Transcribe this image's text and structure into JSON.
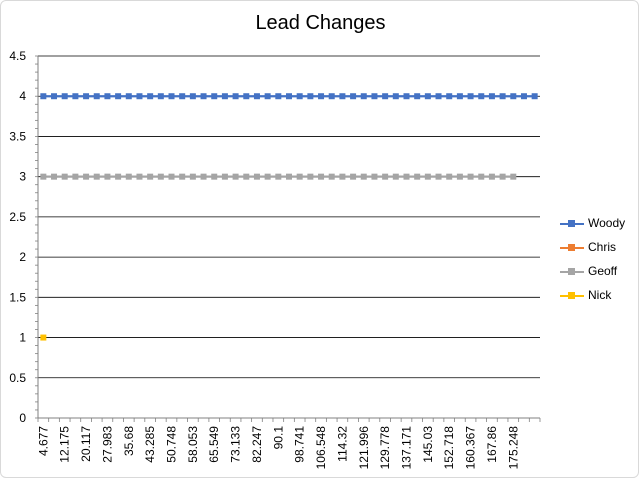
{
  "chart_data": {
    "type": "line",
    "title": "Lead Changes",
    "xlabel": "",
    "ylabel": "",
    "ylim": [
      0,
      4.5
    ],
    "y_ticks": [
      "0",
      "0.5",
      "1",
      "1.5",
      "2",
      "2.5",
      "3",
      "3.5",
      "4",
      "4.5"
    ],
    "x_tick_labels": [
      "4.677",
      "12.175",
      "20.117",
      "27.983",
      "35.68",
      "43.285",
      "50.748",
      "58.053",
      "65.549",
      "73.133",
      "82.247",
      "90.1",
      "98.741",
      "106.548",
      "114.32",
      "121.996",
      "129.778",
      "137.171",
      "145.03",
      "152.718",
      "160.367",
      "167.86",
      "175.248"
    ],
    "category_count": 47,
    "grid": true,
    "legend_position": "right",
    "series": [
      {
        "name": "Woody",
        "color": "#4472c4",
        "values": [
          4,
          4,
          4,
          4,
          4,
          4,
          4,
          4,
          4,
          4,
          4,
          4,
          4,
          4,
          4,
          4,
          4,
          4,
          4,
          4,
          4,
          4,
          4,
          4,
          4,
          4,
          4,
          4,
          4,
          4,
          4,
          4,
          4,
          4,
          4,
          4,
          4,
          4,
          4,
          4,
          4,
          4,
          4,
          4,
          4,
          4,
          4
        ]
      },
      {
        "name": "Chris",
        "color": "#ed7d31",
        "values": []
      },
      {
        "name": "Geoff",
        "color": "#a5a5a5",
        "values": [
          3,
          3,
          3,
          3,
          3,
          3,
          3,
          3,
          3,
          3,
          3,
          3,
          3,
          3,
          3,
          3,
          3,
          3,
          3,
          3,
          3,
          3,
          3,
          3,
          3,
          3,
          3,
          3,
          3,
          3,
          3,
          3,
          3,
          3,
          3,
          3,
          3,
          3,
          3,
          3,
          3,
          3,
          3,
          3,
          3,
          null,
          null
        ]
      },
      {
        "name": "Nick",
        "color": "#ffc000",
        "values": [
          1
        ]
      }
    ]
  }
}
